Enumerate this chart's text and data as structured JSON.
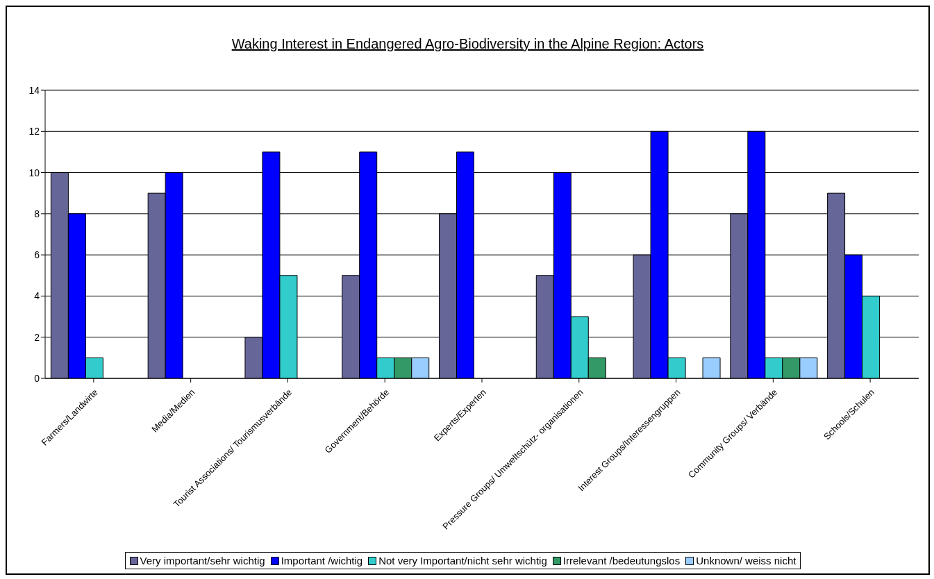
{
  "chart_data": {
    "type": "bar",
    "title": "Waking Interest in Endangered Agro-Biodiversity in the Alpine Region: Actors",
    "categories": [
      "Farmers/Landwirte",
      "Media/Medien",
      "Tourist Associations/ Tourismusverbände",
      "Government/Behörde",
      "Experts/Experten",
      "Pressure Groups/ Umweltschütz- organisationen",
      "Interest Groups/Interessengruppen",
      "Community Groups/ Verbände",
      "Schools/Schulen"
    ],
    "series": [
      {
        "name": "Very important/sehr wichtig",
        "color": "#666699",
        "values": [
          10,
          9,
          2,
          5,
          8,
          5,
          6,
          8,
          9
        ]
      },
      {
        "name": "Important /wichtig",
        "color": "#0000ff",
        "values": [
          8,
          10,
          11,
          11,
          11,
          10,
          12,
          12,
          6
        ]
      },
      {
        "name": "Not very Important/nicht sehr wichtig",
        "color": "#33cccc",
        "values": [
          1,
          0,
          5,
          1,
          0,
          3,
          1,
          1,
          4
        ]
      },
      {
        "name": "Irrelevant /bedeutungslos",
        "color": "#339966",
        "values": [
          0,
          0,
          0,
          1,
          0,
          1,
          0,
          1,
          0
        ]
      },
      {
        "name": "Unknown/ weiss nicht",
        "color": "#99ccff",
        "values": [
          0,
          0,
          0,
          1,
          0,
          0,
          1,
          1,
          0
        ]
      }
    ],
    "ylim": [
      0,
      14
    ],
    "yticks": [
      0,
      2,
      4,
      6,
      8,
      10,
      12,
      14
    ],
    "grid": "y",
    "legend": "bottom"
  }
}
